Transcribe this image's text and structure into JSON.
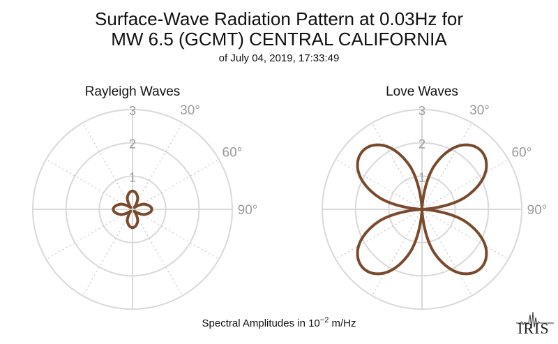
{
  "title": {
    "line1": "Surface-Wave Radiation Pattern at 0.03Hz for",
    "line2": "MW 6.5 (GCMT) CENTRAL CALIFORNIA",
    "subtitle": "of July 04, 2019, 17:33:49"
  },
  "footer": {
    "prefix": "Spectral Amplitudes in 10",
    "exponent": "−2",
    "suffix": " m/Hz"
  },
  "logo": {
    "text": "IRIS"
  },
  "colors": {
    "curve": "#7a4a2e",
    "grid": "#d9d9d9",
    "grid_dotted": "#cfcfcf",
    "labels": "#9a9a9a"
  },
  "chart_data": [
    {
      "type": "polar-line",
      "title": "Rayleigh Waves",
      "radial_max": 3,
      "radial_ticks": [
        1,
        2,
        3
      ],
      "angle_ticks": [
        "30°",
        "60°",
        "90°"
      ],
      "theta_deg": [
        0,
        22.5,
        45,
        67.5,
        90,
        112.5,
        135,
        157.5,
        180,
        202.5,
        225,
        247.5,
        270,
        292.5,
        315,
        337.5
      ],
      "r": [
        0.55,
        0.4,
        0.08,
        0.4,
        0.58,
        0.4,
        0.08,
        0.4,
        0.55,
        0.4,
        0.08,
        0.4,
        0.58,
        0.4,
        0.08,
        0.4
      ]
    },
    {
      "type": "polar-line",
      "title": "Love Waves",
      "radial_max": 3,
      "radial_ticks": [
        1,
        2,
        3
      ],
      "angle_ticks": [
        "30°",
        "60°",
        "90°"
      ],
      "theta_deg": [
        0,
        15,
        30,
        45,
        60,
        75,
        90,
        105,
        120,
        135,
        150,
        165,
        180,
        195,
        210,
        225,
        240,
        255,
        270,
        285,
        300,
        315,
        330,
        345
      ],
      "r": [
        0.0,
        1.3,
        2.2,
        2.5,
        2.2,
        1.3,
        0.0,
        1.3,
        2.2,
        2.5,
        2.2,
        1.3,
        0.0,
        1.3,
        2.2,
        2.5,
        2.2,
        1.3,
        0.0,
        1.3,
        2.2,
        2.5,
        2.2,
        1.3
      ]
    }
  ]
}
